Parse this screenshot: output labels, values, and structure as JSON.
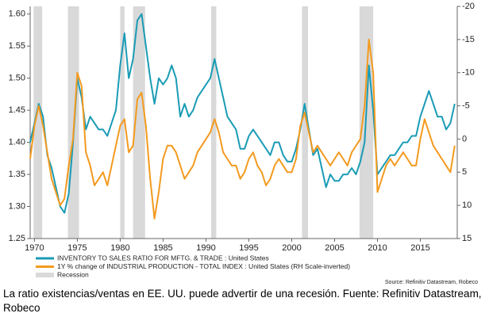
{
  "chart_data": {
    "type": "line",
    "x": [
      1969.5,
      1970,
      1970.5,
      1971,
      1971.5,
      1972,
      1972.5,
      1973,
      1973.5,
      1974,
      1974.5,
      1975,
      1975.5,
      1976,
      1976.5,
      1977,
      1977.5,
      1978,
      1978.5,
      1979,
      1979.5,
      1980,
      1980.5,
      1981,
      1981.5,
      1982,
      1982.5,
      1983,
      1983.5,
      1984,
      1984.5,
      1985,
      1985.5,
      1986,
      1986.5,
      1987,
      1987.5,
      1988,
      1988.5,
      1989,
      1989.5,
      1990,
      1990.5,
      1991,
      1991.5,
      1992,
      1992.5,
      1993,
      1993.5,
      1994,
      1994.5,
      1995,
      1995.5,
      1996,
      1996.5,
      1997,
      1997.5,
      1998,
      1998.5,
      1999,
      1999.5,
      2000,
      2000.5,
      2001,
      2001.5,
      2002,
      2002.5,
      2003,
      2003.5,
      2004,
      2004.5,
      2005,
      2005.5,
      2006,
      2006.5,
      2007,
      2007.5,
      2008,
      2008.5,
      2009,
      2009.5,
      2010,
      2010.5,
      2011,
      2011.5,
      2012,
      2012.5,
      2013,
      2013.5,
      2014,
      2014.5,
      2015,
      2015.5,
      2016,
      2016.5,
      2017,
      2017.5,
      2018,
      2018.5,
      2019
    ],
    "series": [
      {
        "name": "INVENTORY TO SALES RATIO FOR MFTG. & TRADE : United States",
        "color": "#1a9bb5",
        "axis": "y",
        "values": [
          1.4,
          1.43,
          1.46,
          1.44,
          1.38,
          1.36,
          1.33,
          1.3,
          1.29,
          1.32,
          1.4,
          1.5,
          1.47,
          1.42,
          1.44,
          1.43,
          1.42,
          1.42,
          1.41,
          1.43,
          1.45,
          1.52,
          1.57,
          1.5,
          1.53,
          1.59,
          1.6,
          1.55,
          1.5,
          1.46,
          1.5,
          1.49,
          1.5,
          1.52,
          1.5,
          1.44,
          1.46,
          1.44,
          1.45,
          1.47,
          1.48,
          1.49,
          1.5,
          1.53,
          1.5,
          1.47,
          1.44,
          1.43,
          1.42,
          1.39,
          1.39,
          1.41,
          1.42,
          1.41,
          1.4,
          1.39,
          1.38,
          1.4,
          1.4,
          1.38,
          1.37,
          1.37,
          1.39,
          1.42,
          1.46,
          1.42,
          1.38,
          1.39,
          1.36,
          1.33,
          1.35,
          1.34,
          1.34,
          1.35,
          1.35,
          1.36,
          1.35,
          1.37,
          1.4,
          1.52,
          1.45,
          1.35,
          1.36,
          1.37,
          1.38,
          1.38,
          1.39,
          1.4,
          1.4,
          1.41,
          1.41,
          1.44,
          1.46,
          1.48,
          1.46,
          1.44,
          1.44,
          1.42,
          1.43,
          1.46
        ]
      },
      {
        "name": "1Y % change of INDUSTRIAL PRODUCTION - TOTAL INDEX : United States (RH Scale-inverted)",
        "color": "#f39a1f",
        "axis": "y2",
        "values": [
          3,
          -2,
          -5,
          -2,
          2,
          6,
          8,
          10,
          9,
          4,
          0,
          -10,
          -8,
          2,
          4,
          7,
          6,
          5,
          7,
          4,
          1,
          -2,
          -3,
          2,
          1,
          -6,
          -7,
          -2,
          6,
          12,
          8,
          3,
          1,
          1,
          2,
          4,
          6,
          5,
          4,
          2,
          1,
          0,
          -1,
          -3,
          -1,
          2,
          3,
          4,
          4,
          6,
          5,
          3,
          2,
          4,
          5,
          7,
          6,
          4,
          3,
          4,
          5,
          5,
          3,
          -2,
          -4,
          -1,
          2,
          1,
          2,
          3,
          4,
          3,
          2,
          3,
          4,
          2,
          1,
          0,
          -5,
          -15,
          -10,
          8,
          6,
          4,
          3,
          4,
          3,
          2,
          3,
          4,
          4,
          0,
          -3,
          -1,
          1,
          2,
          3,
          4,
          5,
          1
        ]
      }
    ],
    "recession": {
      "name": "Recession",
      "color": "#d9d9d9",
      "spans": [
        [
          1969.9,
          1970.9
        ],
        [
          1973.9,
          1975.2
        ],
        [
          1980.0,
          1980.5
        ],
        [
          1981.5,
          1982.9
        ],
        [
          1990.6,
          1991.2
        ],
        [
          2001.2,
          2001.9
        ],
        [
          2007.9,
          2009.5
        ]
      ]
    },
    "xlim": [
      1969.5,
      2019.3
    ],
    "xticks": [
      1970,
      1975,
      1980,
      1985,
      1990,
      1995,
      2000,
      2005,
      2010,
      2015
    ],
    "ylim": [
      1.25,
      1.612
    ],
    "yticks": [
      {
        "value": 1.25,
        "label": "1.25"
      },
      {
        "value": 1.3,
        "label": "1.30"
      },
      {
        "value": 1.35,
        "label": "1.35"
      },
      {
        "value": 1.4,
        "label": "1.40"
      },
      {
        "value": 1.45,
        "label": "1.45"
      },
      {
        "value": 1.5,
        "label": "1.50"
      },
      {
        "value": 1.55,
        "label": "1.55"
      },
      {
        "value": 1.6,
        "label": "1.60"
      }
    ],
    "y2lim": [
      -20,
      15
    ],
    "y2ticks": [
      -20,
      -15,
      -10,
      -5,
      0,
      5,
      10,
      15
    ],
    "y2_inverted": true,
    "grid": false,
    "source": "Source: Refinitiv Datastream, Robeco"
  },
  "caption": "La ratio existencias/ventas en EE. UU. puede advertir de una recesión. Fuente: Refinitiv Datastream, Robeco"
}
